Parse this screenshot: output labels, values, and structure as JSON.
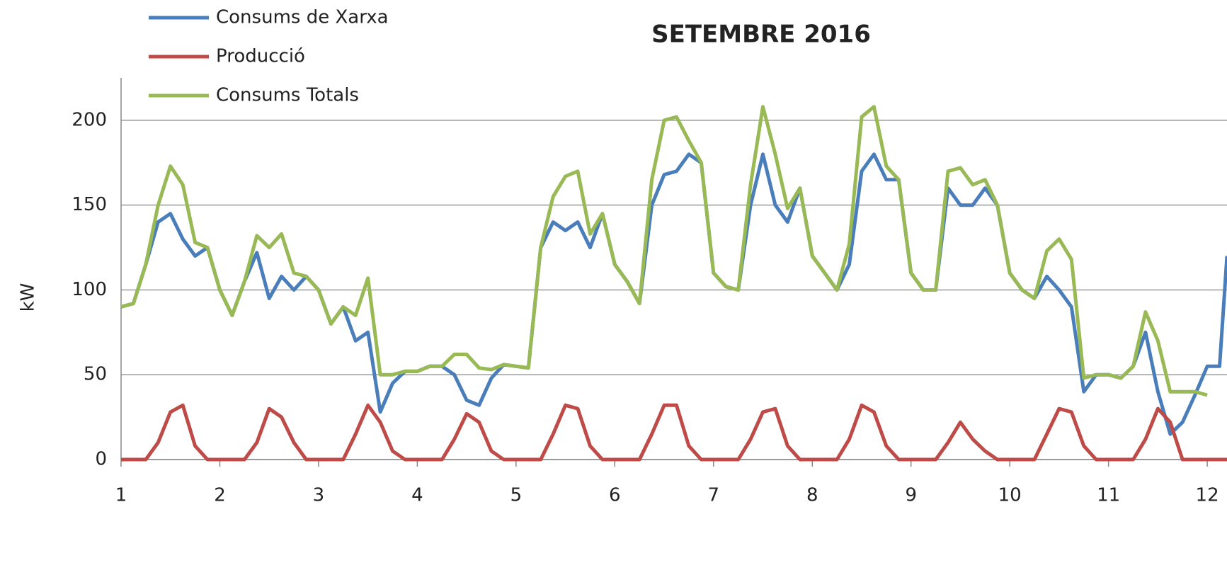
{
  "chart_data": {
    "type": "line",
    "title": "SETEMBRE 2016",
    "y_label": "kW",
    "x": [
      1,
      1.125,
      1.25,
      1.375,
      1.5,
      1.625,
      1.75,
      1.875,
      2,
      2.125,
      2.25,
      2.375,
      2.5,
      2.625,
      2.75,
      2.875,
      3,
      3.125,
      3.25,
      3.375,
      3.5,
      3.625,
      3.75,
      3.875,
      4,
      4.125,
      4.25,
      4.375,
      4.5,
      4.625,
      4.75,
      4.875,
      5,
      5.125,
      5.25,
      5.375,
      5.5,
      5.625,
      5.75,
      5.875,
      6,
      6.125,
      6.25,
      6.375,
      6.5,
      6.625,
      6.75,
      6.875,
      7,
      7.125,
      7.25,
      7.375,
      7.5,
      7.625,
      7.75,
      7.875,
      8,
      8.125,
      8.25,
      8.375,
      8.5,
      8.625,
      8.75,
      8.875,
      9,
      9.125,
      9.25,
      9.375,
      9.5,
      9.625,
      9.75,
      9.875,
      10,
      10.125,
      10.25,
      10.375,
      10.5,
      10.625,
      10.75,
      10.875,
      11,
      11.125,
      11.25,
      11.375,
      11.5,
      11.625,
      11.75,
      11.875,
      12,
      12.125,
      12.2
    ],
    "series": [
      {
        "name": "Consums de Xarxa",
        "color": "#4a7ebb",
        "values": [
          90,
          92,
          115,
          140,
          145,
          130,
          120,
          125,
          100,
          85,
          105,
          122,
          95,
          108,
          100,
          108,
          100,
          80,
          90,
          70,
          75,
          28,
          45,
          52,
          52,
          55,
          55,
          50,
          35,
          32,
          48,
          56,
          55,
          54,
          125,
          140,
          135,
          140,
          125,
          145,
          115,
          105,
          92,
          150,
          168,
          170,
          180,
          175,
          110,
          102,
          100,
          150,
          180,
          150,
          140,
          160,
          120,
          110,
          100,
          115,
          170,
          180,
          165,
          165,
          110,
          100,
          100,
          160,
          150,
          150,
          160,
          150,
          110,
          100,
          95,
          108,
          100,
          90,
          40,
          50,
          50,
          48,
          55,
          75,
          40,
          15,
          22,
          38,
          55,
          55,
          120
        ]
      },
      {
        "name": "Producció",
        "color": "#be4b48",
        "values": [
          0,
          0,
          0,
          10,
          28,
          32,
          8,
          0,
          0,
          0,
          0,
          10,
          30,
          25,
          10,
          0,
          0,
          0,
          0,
          15,
          32,
          22,
          5,
          0,
          0,
          0,
          0,
          12,
          27,
          22,
          5,
          0,
          0,
          0,
          0,
          15,
          32,
          30,
          8,
          0,
          0,
          0,
          0,
          15,
          32,
          32,
          8,
          0,
          0,
          0,
          0,
          12,
          28,
          30,
          8,
          0,
          0,
          0,
          0,
          12,
          32,
          28,
          8,
          0,
          0,
          0,
          0,
          10,
          22,
          12,
          5,
          0,
          0,
          0,
          0,
          15,
          30,
          28,
          8,
          0,
          0,
          0,
          0,
          12,
          30,
          22,
          0,
          0,
          0,
          0,
          0
        ]
      },
      {
        "name": "Consums Totals",
        "color": "#98b954",
        "values": [
          90,
          92,
          115,
          150,
          173,
          162,
          128,
          125,
          100,
          85,
          105,
          132,
          125,
          133,
          110,
          108,
          100,
          80,
          90,
          85,
          107,
          50,
          50,
          52,
          52,
          55,
          55,
          62,
          62,
          54,
          53,
          56,
          55,
          54,
          125,
          155,
          167,
          170,
          133,
          145,
          115,
          105,
          92,
          165,
          200,
          202,
          188,
          175,
          110,
          102,
          100,
          162,
          208,
          180,
          148,
          160,
          120,
          110,
          100,
          127,
          202,
          208,
          173,
          165,
          110,
          100,
          100,
          170,
          172,
          162,
          165,
          150,
          110,
          100,
          95,
          123,
          130,
          118,
          48,
          50,
          50,
          48,
          55,
          87,
          70,
          40,
          40,
          40,
          38,
          null,
          null
        ]
      }
    ],
    "xlim": [
      1,
      12.2
    ],
    "xticks": [
      1,
      2,
      3,
      4,
      5,
      6,
      7,
      8,
      9,
      10,
      11,
      12
    ],
    "ylim": [
      0,
      220
    ],
    "yticks": [
      0,
      50,
      100,
      150,
      200
    ],
    "grid": true
  }
}
